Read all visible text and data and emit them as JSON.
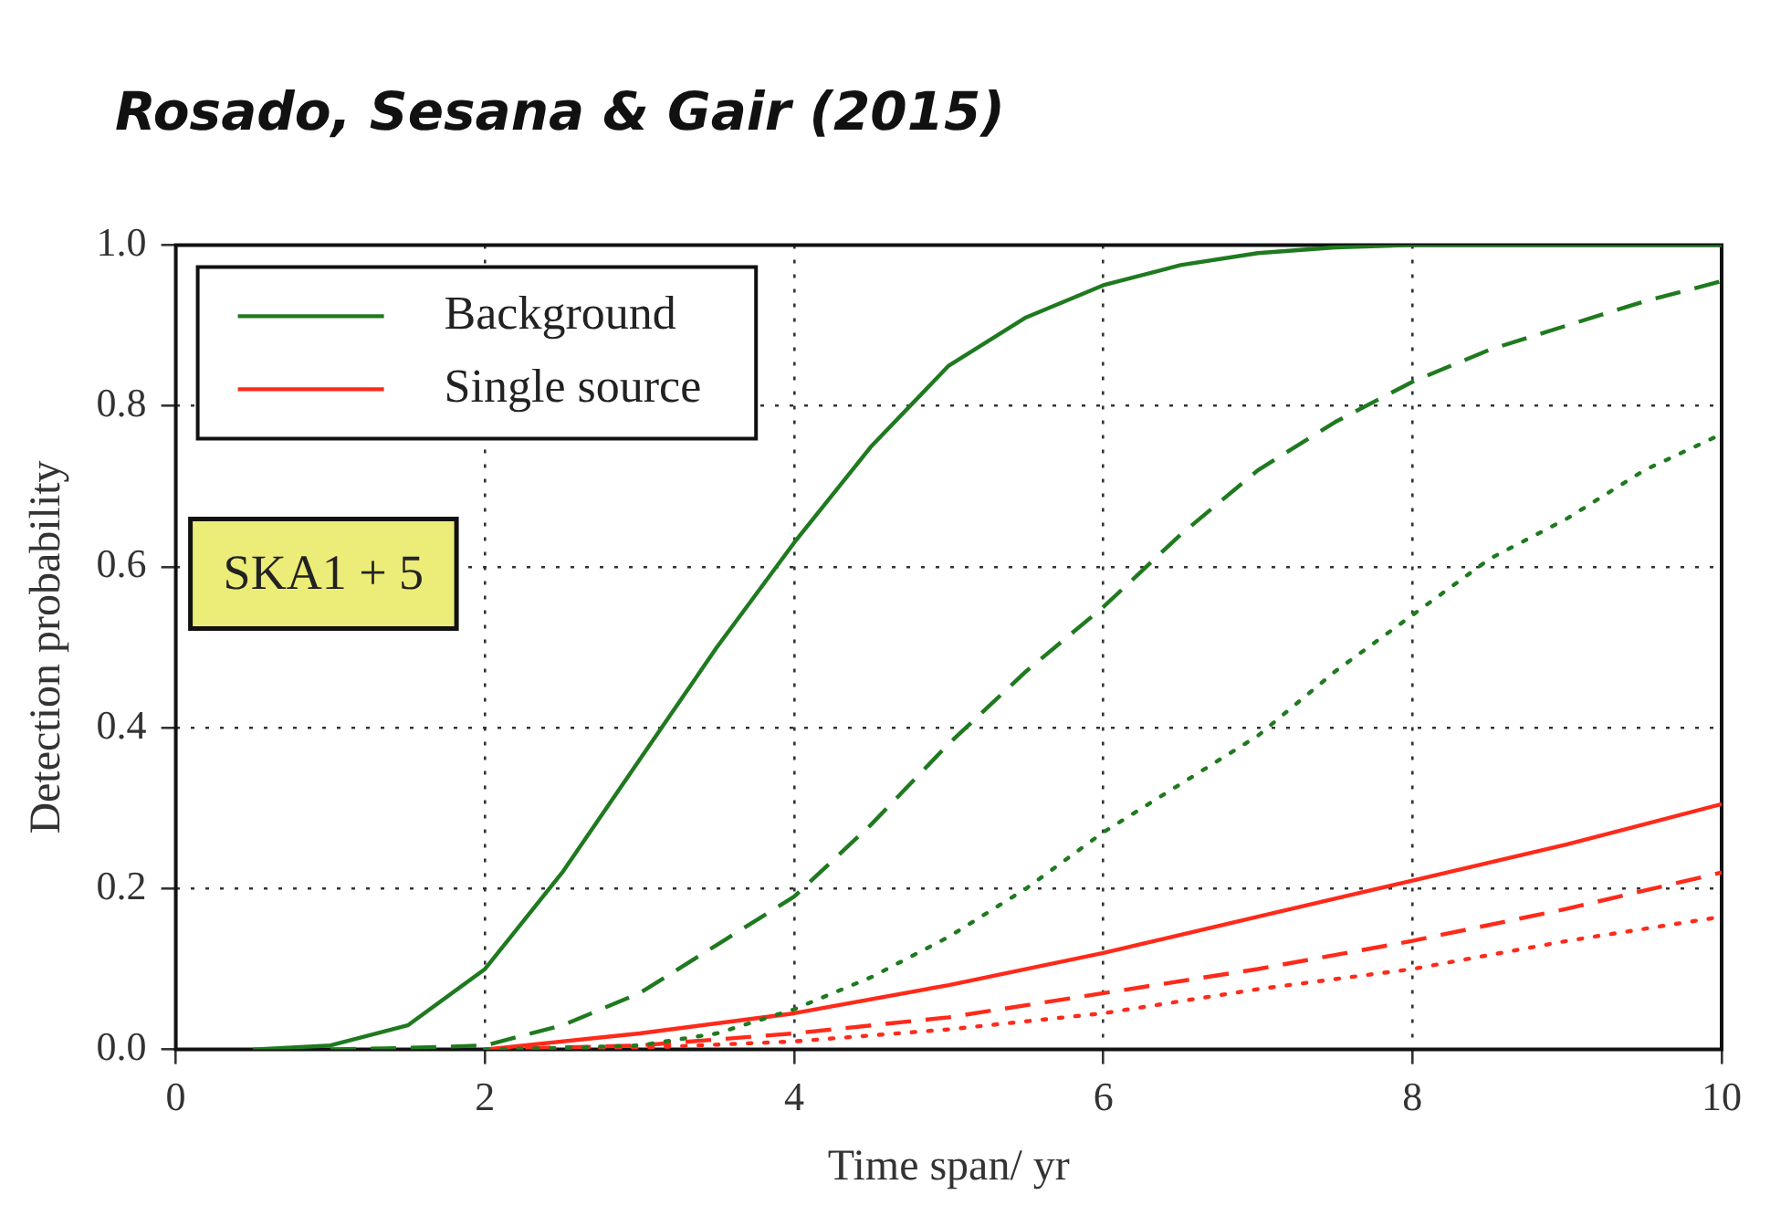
{
  "chart_data": {
    "type": "line",
    "title": "Rosado, Sesana & Gair (2015)",
    "xlabel": "Time span/ yr",
    "ylabel": "Detection probability",
    "annotations": [
      "SKA1 + 5"
    ],
    "xlim": [
      0,
      10
    ],
    "xticks": [
      0,
      2,
      4,
      6,
      8,
      10
    ],
    "ylim": [
      0,
      1
    ],
    "yticks": [
      {
        "value": 0,
        "label": "0.0"
      },
      {
        "value": 0.2,
        "label": "0.2"
      },
      {
        "value": 0.4,
        "label": "0.4"
      },
      {
        "value": 0.6,
        "label": "0.6"
      },
      {
        "value": 0.8,
        "label": "0.8"
      },
      {
        "value": 1,
        "label": "1.0"
      }
    ],
    "grid": true,
    "legend": "top left",
    "marker": "none",
    "series": [
      {
        "name": "Background",
        "color": "#1f7a1f",
        "line_style": "solid",
        "x": [
          0.5,
          1,
          1.5,
          2,
          2.5,
          3,
          3.5,
          4,
          4.5,
          5,
          5.5,
          6,
          6.5,
          7,
          7.5,
          8,
          9,
          10
        ],
        "values": [
          0,
          0.005,
          0.03,
          0.1,
          0.22,
          0.36,
          0.5,
          0.63,
          0.75,
          0.85,
          0.91,
          0.95,
          0.975,
          0.99,
          0.997,
          1,
          1,
          1
        ]
      },
      {
        "color": "#1f7a1f",
        "line_style": "dashed",
        "x": [
          1,
          1.5,
          2,
          2.5,
          3,
          3.5,
          4,
          4.5,
          5,
          5.5,
          6,
          6.5,
          7,
          7.5,
          8,
          8.5,
          9,
          9.5,
          10
        ],
        "values": [
          0,
          0.002,
          0.005,
          0.03,
          0.07,
          0.13,
          0.19,
          0.28,
          0.38,
          0.47,
          0.55,
          0.64,
          0.72,
          0.78,
          0.83,
          0.87,
          0.9,
          0.93,
          0.955
        ]
      },
      {
        "color": "#1f7a1f",
        "line_style": "dotted",
        "x": [
          2,
          2.5,
          3,
          3.5,
          4,
          4.5,
          5,
          5.5,
          6,
          6.5,
          7,
          7.5,
          8,
          8.5,
          9,
          9.5,
          10
        ],
        "values": [
          0,
          0.002,
          0.005,
          0.02,
          0.05,
          0.09,
          0.14,
          0.2,
          0.27,
          0.33,
          0.39,
          0.47,
          0.54,
          0.61,
          0.66,
          0.72,
          0.765
        ]
      },
      {
        "name": "Single source",
        "color": "#ff2a1a",
        "line_style": "solid",
        "x": [
          2,
          3,
          4,
          5,
          6,
          7,
          8,
          9,
          10
        ],
        "values": [
          0,
          0.02,
          0.045,
          0.08,
          0.12,
          0.165,
          0.21,
          0.255,
          0.305
        ]
      },
      {
        "color": "#ff2a1a",
        "line_style": "dashed",
        "x": [
          2,
          3,
          4,
          5,
          6,
          7,
          8,
          9,
          10
        ],
        "values": [
          0,
          0.005,
          0.02,
          0.04,
          0.07,
          0.1,
          0.135,
          0.175,
          0.22
        ]
      },
      {
        "color": "#ff2a1a",
        "line_style": "dotted",
        "x": [
          2,
          3,
          4,
          5,
          6,
          7,
          8,
          9,
          10
        ],
        "values": [
          0,
          0.002,
          0.01,
          0.025,
          0.045,
          0.075,
          0.1,
          0.135,
          0.165
        ]
      }
    ]
  }
}
